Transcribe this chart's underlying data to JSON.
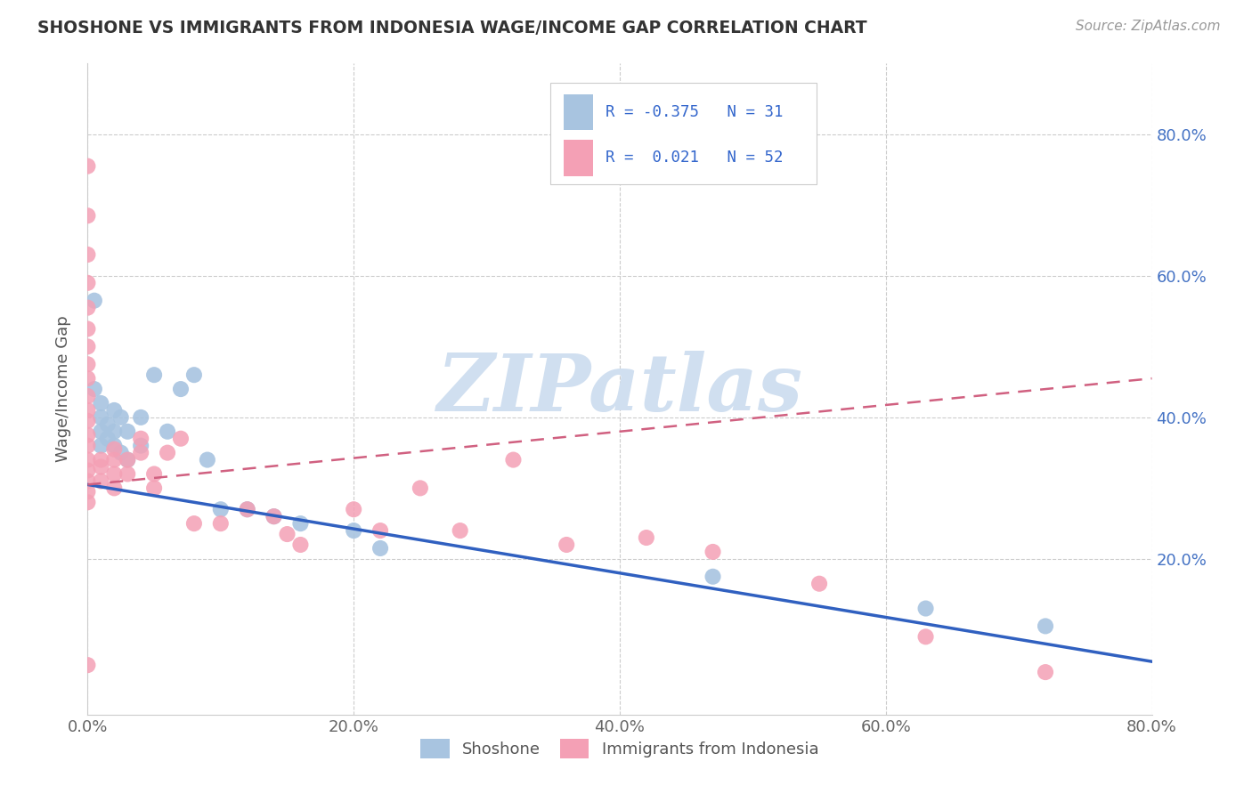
{
  "title": "SHOSHONE VS IMMIGRANTS FROM INDONESIA WAGE/INCOME GAP CORRELATION CHART",
  "source_text": "Source: ZipAtlas.com",
  "ylabel": "Wage/Income Gap",
  "xlim": [
    0.0,
    0.8
  ],
  "ylim": [
    -0.02,
    0.9
  ],
  "xtick_labels": [
    "0.0%",
    "20.0%",
    "40.0%",
    "60.0%",
    "80.0%"
  ],
  "xtick_vals": [
    0.0,
    0.2,
    0.4,
    0.6,
    0.8
  ],
  "ytick_vals": [
    0.2,
    0.4,
    0.6,
    0.8
  ],
  "right_ytick_labels": [
    "20.0%",
    "40.0%",
    "60.0%",
    "80.0%"
  ],
  "right_ytick_vals": [
    0.2,
    0.4,
    0.6,
    0.8
  ],
  "shoshone_color": "#a8c4e0",
  "indonesia_color": "#f4a0b5",
  "shoshone_line_color": "#3060c0",
  "indonesia_line_color": "#d06080",
  "watermark": "ZIPatlas",
  "watermark_color": "#d0dff0",
  "shoshone_x": [
    0.005,
    0.005,
    0.01,
    0.01,
    0.01,
    0.01,
    0.015,
    0.015,
    0.02,
    0.02,
    0.02,
    0.025,
    0.025,
    0.03,
    0.03,
    0.04,
    0.04,
    0.05,
    0.06,
    0.07,
    0.08,
    0.09,
    0.1,
    0.12,
    0.14,
    0.16,
    0.2,
    0.22,
    0.47,
    0.63,
    0.72
  ],
  "shoshone_y": [
    0.565,
    0.44,
    0.4,
    0.42,
    0.38,
    0.36,
    0.37,
    0.39,
    0.36,
    0.38,
    0.41,
    0.4,
    0.35,
    0.38,
    0.34,
    0.36,
    0.4,
    0.46,
    0.38,
    0.44,
    0.46,
    0.34,
    0.27,
    0.27,
    0.26,
    0.25,
    0.24,
    0.215,
    0.175,
    0.13,
    0.105
  ],
  "indonesia_x": [
    0.0,
    0.0,
    0.0,
    0.0,
    0.0,
    0.0,
    0.0,
    0.0,
    0.0,
    0.0,
    0.0,
    0.0,
    0.0,
    0.0,
    0.0,
    0.0,
    0.0,
    0.0,
    0.0,
    0.0,
    0.01,
    0.01,
    0.01,
    0.02,
    0.02,
    0.02,
    0.02,
    0.03,
    0.03,
    0.04,
    0.04,
    0.05,
    0.05,
    0.06,
    0.07,
    0.08,
    0.1,
    0.12,
    0.14,
    0.15,
    0.16,
    0.2,
    0.22,
    0.25,
    0.28,
    0.32,
    0.36,
    0.42,
    0.47,
    0.55,
    0.63,
    0.72
  ],
  "indonesia_y": [
    0.755,
    0.685,
    0.63,
    0.59,
    0.555,
    0.525,
    0.5,
    0.475,
    0.455,
    0.43,
    0.41,
    0.395,
    0.375,
    0.36,
    0.34,
    0.325,
    0.31,
    0.295,
    0.28,
    0.05,
    0.34,
    0.33,
    0.31,
    0.355,
    0.34,
    0.32,
    0.3,
    0.34,
    0.32,
    0.37,
    0.35,
    0.32,
    0.3,
    0.35,
    0.37,
    0.25,
    0.25,
    0.27,
    0.26,
    0.235,
    0.22,
    0.27,
    0.24,
    0.3,
    0.24,
    0.34,
    0.22,
    0.23,
    0.21,
    0.165,
    0.09,
    0.04
  ],
  "shoshone_line_x": [
    0.0,
    0.8
  ],
  "shoshone_line_y": [
    0.305,
    0.055
  ],
  "indonesia_line_x": [
    0.0,
    0.8
  ],
  "indonesia_line_y": [
    0.305,
    0.455
  ]
}
